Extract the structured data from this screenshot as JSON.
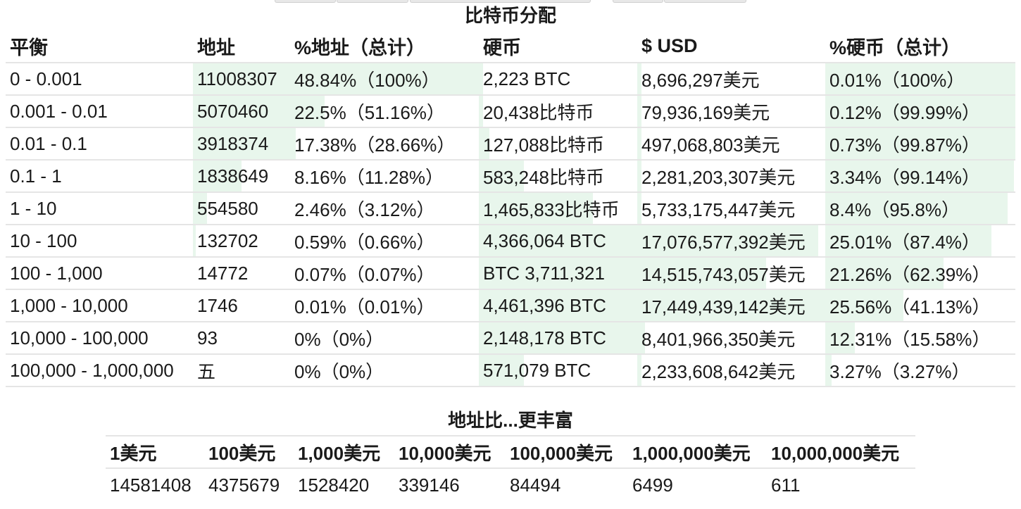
{
  "distribution": {
    "title": "比特币分配",
    "headers": [
      "平衡",
      "地址",
      "%地址（总计）",
      "硬币",
      "$ USD",
      "%硬币（总计）"
    ],
    "rows": [
      {
        "balance": "0 - 0.001",
        "addresses": "11008307",
        "addr_pct": "48.84%（100%）",
        "coins": "2,223 BTC",
        "usd": "8,696,297美元",
        "coin_pct": "0.01%（100%）",
        "addr_frac": 1.0,
        "coins_frac": 0.01,
        "usd_frac": 0.01,
        "coinpct_frac": 1.0
      },
      {
        "balance": "0.001 - 0.01",
        "addresses": "5070460",
        "addr_pct": "22.5%（51.16%）",
        "coins": "20,438比特币",
        "usd": "79,936,169美元",
        "coin_pct": "0.12%（99.99%）",
        "addr_frac": 0.46,
        "coins_frac": 0.01,
        "usd_frac": 0.01,
        "coinpct_frac": 0.9999
      },
      {
        "balance": "0.01 - 0.1",
        "addresses": "3918374",
        "addr_pct": "17.38%（28.66%）",
        "coins": "127,088比特币",
        "usd": "497,068,803美元",
        "coin_pct": "0.73%（99.87%）",
        "addr_frac": 0.36,
        "coins_frac": 0.03,
        "usd_frac": 0.03,
        "coinpct_frac": 0.9987
      },
      {
        "balance": "0.1 - 1",
        "addresses": "1838649",
        "addr_pct": "8.16%（11.28%）",
        "coins": "583,248比特币",
        "usd": "2,281,203,307美元",
        "coin_pct": "3.34%（99.14%）",
        "addr_frac": 0.17,
        "coins_frac": 0.13,
        "usd_frac": 0.13,
        "coinpct_frac": 0.9914
      },
      {
        "balance": "1 - 10",
        "addresses": "554580",
        "addr_pct": "2.46%（3.12%）",
        "coins": "1,465,833比特币",
        "usd": "5,733,175,447美元",
        "coin_pct": "8.4%（95.8%）",
        "addr_frac": 0.05,
        "coins_frac": 0.33,
        "usd_frac": 0.33,
        "coinpct_frac": 0.958
      },
      {
        "balance": "10 - 100",
        "addresses": "132702",
        "addr_pct": "0.59%（0.66%）",
        "coins": "4,366,064 BTC",
        "usd": "17,076,577,392美元",
        "coin_pct": "25.01%（87.4%）",
        "addr_frac": 0.01,
        "coins_frac": 0.98,
        "usd_frac": 0.98,
        "coinpct_frac": 0.874
      },
      {
        "balance": "100 - 1,000",
        "addresses": "14772",
        "addr_pct": "0.07%（0.07%）",
        "coins": "BTC 3,711,321",
        "usd": "14,515,743,057美元",
        "coin_pct": "21.26%（62.39%）",
        "addr_frac": 0.0,
        "coins_frac": 0.83,
        "usd_frac": 0.83,
        "coinpct_frac": 0.6239
      },
      {
        "balance": "1,000 - 10,000",
        "addresses": "1746",
        "addr_pct": "0.01%（0.01%）",
        "coins": "4,461,396 BTC",
        "usd": "17,449,439,142美元",
        "coin_pct": "25.56%（41.13%）",
        "addr_frac": 0.0,
        "coins_frac": 1.0,
        "usd_frac": 1.0,
        "coinpct_frac": 0.4113
      },
      {
        "balance": "10,000 - 100,000",
        "addresses": "93",
        "addr_pct": "0%（0%）",
        "coins": "2,148,178 BTC",
        "usd": "8,401,966,350美元",
        "coin_pct": "12.31%（15.58%）",
        "addr_frac": 0.0,
        "coins_frac": 0.48,
        "usd_frac": 0.48,
        "coinpct_frac": 0.1558
      },
      {
        "balance": "100,000 - 1,000,000",
        "addresses": "五",
        "addr_pct": "0%（0%）",
        "coins": "571,079 BTC",
        "usd": "2,233,608,642美元",
        "coin_pct": "3.27%（3.27%）",
        "addr_frac": 0.0,
        "coins_frac": 0.13,
        "usd_frac": 0.13,
        "coinpct_frac": 0.0327
      }
    ]
  },
  "richer": {
    "title": "地址比...更丰富",
    "headers": [
      "1美元",
      "100美元",
      "1,000美元",
      "10,000美元",
      "100,000美元",
      "1,000,000美元",
      "10,000,000美元"
    ],
    "values": [
      "14581408",
      "4375679",
      "1528420",
      "339146",
      "84494",
      "6499",
      "611"
    ]
  },
  "colors": {
    "bar_fill": "#e8f6ec",
    "divider": "#e5e5e5"
  }
}
